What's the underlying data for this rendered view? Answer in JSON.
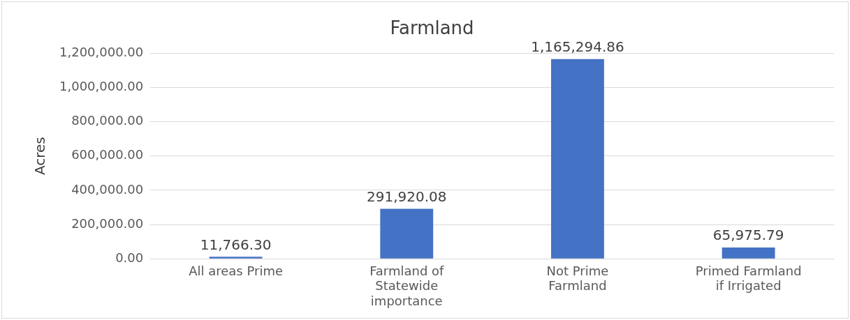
{
  "chart_data": {
    "type": "bar",
    "title": "Farmland",
    "ylabel": "Acres",
    "categories": [
      "All areas Prime",
      "Farmland of Statewide importance",
      "Not Prime Farmland",
      "Primed Farmland if Irrigated"
    ],
    "values": [
      11766.3,
      291920.08,
      1165294.86,
      65975.79
    ],
    "color": "#4472c4",
    "ylim": [
      0,
      1200000
    ],
    "yticks": [
      {
        "value": 0,
        "label": "0.00"
      },
      {
        "value": 200000,
        "label": "200,000.00"
      },
      {
        "value": 400000,
        "label": "400,000.00"
      },
      {
        "value": 600000,
        "label": "600,000.00"
      },
      {
        "value": 800000,
        "label": "800,000.00"
      },
      {
        "value": 1000000,
        "label": "1,000,000.00"
      },
      {
        "value": 1200000,
        "label": "1,200,000.00"
      }
    ],
    "value_labels": [
      "11,766.30",
      "291,920.08",
      "1,165,294.86",
      "65,975.79"
    ],
    "grid": "y"
  }
}
